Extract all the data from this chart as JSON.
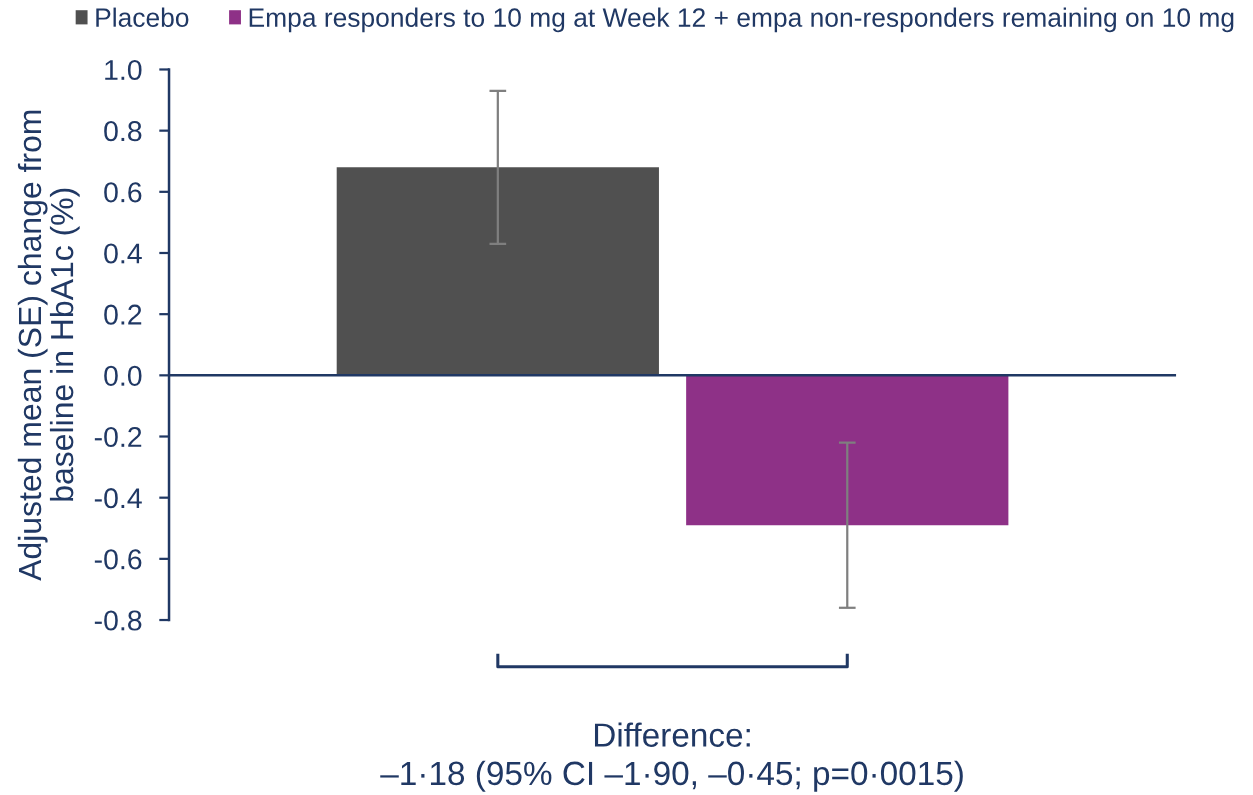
{
  "chart_data": {
    "type": "bar",
    "ylabel": "Adjusted mean (SE) change from\nbaseline in HbA1c (%)",
    "categories": [
      null
    ],
    "series": [
      {
        "name": "Placebo",
        "color": "#505050",
        "values": [
          0.68
        ],
        "errors": [
          0.25
        ]
      },
      {
        "name": "Empa responders to 10 mg at Week 12 + empa non-responders remaining on 10 mg",
        "color": "#8e3187",
        "values": [
          -0.49
        ],
        "errors": [
          0.27
        ]
      }
    ],
    "ylim": [
      -0.8,
      1.0
    ],
    "yticks": [
      -0.8,
      -0.6,
      -0.4,
      -0.2,
      {
        "value": 0,
        "label": "0.0"
      },
      0.2,
      0.4,
      0.6,
      0.8,
      {
        "value": 1,
        "label": "1.0"
      }
    ],
    "ref_lines": [
      {
        "axis": "y",
        "value": 0,
        "color": "#203864"
      }
    ],
    "legend": "top",
    "annotations": [
      "Difference:\n–1·18 (95% CI –1·90, –0·45; p=0·0015)"
    ]
  }
}
